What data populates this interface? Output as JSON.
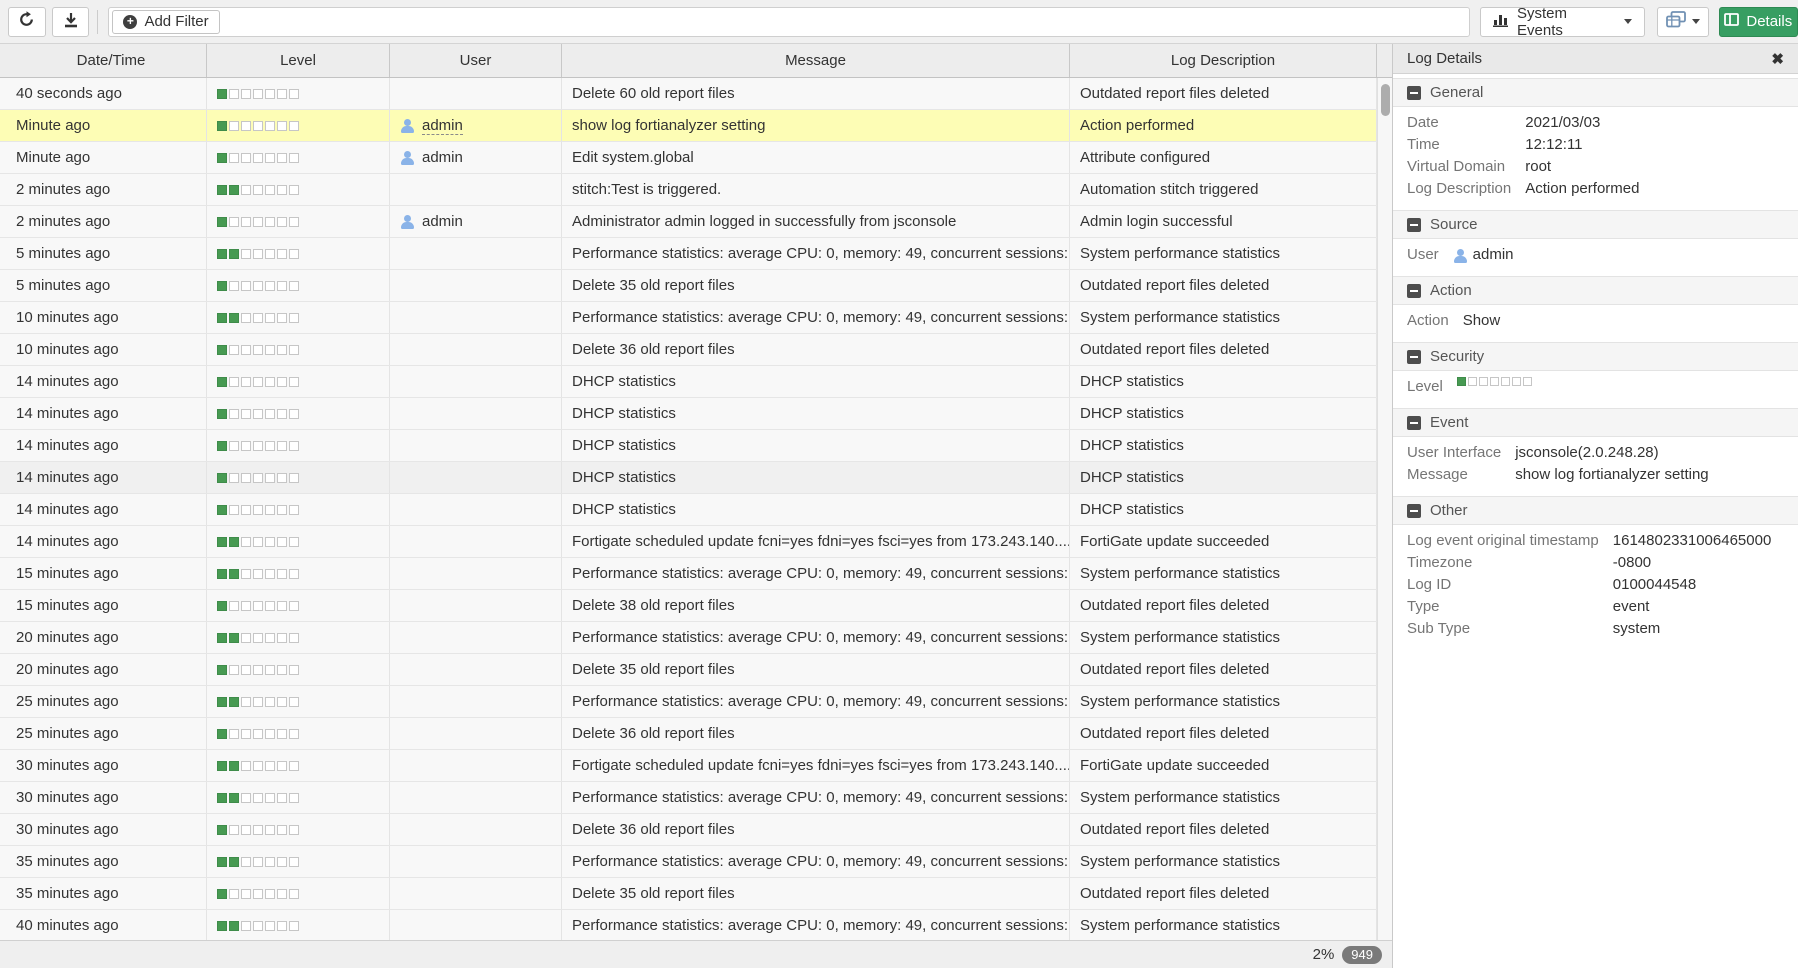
{
  "toolbar": {
    "add_filter_label": "Add Filter",
    "view_selector_label": "System Events",
    "details_button_label": "Details"
  },
  "table": {
    "columns": [
      "Date/Time",
      "Level",
      "User",
      "Message",
      "Log Description"
    ],
    "level_max": 7,
    "rows": [
      {
        "time": "40 seconds ago",
        "level": 1,
        "user": "",
        "message": "Delete 60 old report files",
        "description": "Outdated report files deleted",
        "state": ""
      },
      {
        "time": "Minute ago",
        "level": 1,
        "user": "admin",
        "message": "show log fortianalyzer setting",
        "description": "Action performed",
        "state": "selected"
      },
      {
        "time": "Minute ago",
        "level": 1,
        "user": "admin",
        "message": "Edit system.global",
        "description": "Attribute configured",
        "state": ""
      },
      {
        "time": "2 minutes ago",
        "level": 2,
        "user": "",
        "message": "stitch:Test is triggered.",
        "description": "Automation stitch triggered",
        "state": ""
      },
      {
        "time": "2 minutes ago",
        "level": 1,
        "user": "admin",
        "message": "Administrator admin logged in successfully from jsconsole",
        "description": "Admin login successful",
        "state": ""
      },
      {
        "time": "5 minutes ago",
        "level": 2,
        "user": "",
        "message": "Performance statistics: average CPU: 0, memory: 49, concurrent sessions: ...",
        "description": "System performance statistics",
        "state": ""
      },
      {
        "time": "5 minutes ago",
        "level": 1,
        "user": "",
        "message": "Delete 35 old report files",
        "description": "Outdated report files deleted",
        "state": ""
      },
      {
        "time": "10 minutes ago",
        "level": 2,
        "user": "",
        "message": "Performance statistics: average CPU: 0, memory: 49, concurrent sessions: ...",
        "description": "System performance statistics",
        "state": ""
      },
      {
        "time": "10 minutes ago",
        "level": 1,
        "user": "",
        "message": "Delete 36 old report files",
        "description": "Outdated report files deleted",
        "state": ""
      },
      {
        "time": "14 minutes ago",
        "level": 1,
        "user": "",
        "message": "DHCP statistics",
        "description": "DHCP statistics",
        "state": ""
      },
      {
        "time": "14 minutes ago",
        "level": 1,
        "user": "",
        "message": "DHCP statistics",
        "description": "DHCP statistics",
        "state": ""
      },
      {
        "time": "14 minutes ago",
        "level": 1,
        "user": "",
        "message": "DHCP statistics",
        "description": "DHCP statistics",
        "state": ""
      },
      {
        "time": "14 minutes ago",
        "level": 1,
        "user": "",
        "message": "DHCP statistics",
        "description": "DHCP statistics",
        "state": "hover"
      },
      {
        "time": "14 minutes ago",
        "level": 1,
        "user": "",
        "message": "DHCP statistics",
        "description": "DHCP statistics",
        "state": ""
      },
      {
        "time": "14 minutes ago",
        "level": 2,
        "user": "",
        "message": "Fortigate scheduled update fcni=yes fdni=yes fsci=yes from 173.243.140....",
        "description": "FortiGate update succeeded",
        "state": ""
      },
      {
        "time": "15 minutes ago",
        "level": 2,
        "user": "",
        "message": "Performance statistics: average CPU: 0, memory: 49, concurrent sessions: ...",
        "description": "System performance statistics",
        "state": ""
      },
      {
        "time": "15 minutes ago",
        "level": 1,
        "user": "",
        "message": "Delete 38 old report files",
        "description": "Outdated report files deleted",
        "state": ""
      },
      {
        "time": "20 minutes ago",
        "level": 2,
        "user": "",
        "message": "Performance statistics: average CPU: 0, memory: 49, concurrent sessions: ...",
        "description": "System performance statistics",
        "state": ""
      },
      {
        "time": "20 minutes ago",
        "level": 1,
        "user": "",
        "message": "Delete 35 old report files",
        "description": "Outdated report files deleted",
        "state": ""
      },
      {
        "time": "25 minutes ago",
        "level": 2,
        "user": "",
        "message": "Performance statistics: average CPU: 0, memory: 49, concurrent sessions: ...",
        "description": "System performance statistics",
        "state": ""
      },
      {
        "time": "25 minutes ago",
        "level": 1,
        "user": "",
        "message": "Delete 36 old report files",
        "description": "Outdated report files deleted",
        "state": ""
      },
      {
        "time": "30 minutes ago",
        "level": 2,
        "user": "",
        "message": "Fortigate scheduled update fcni=yes fdni=yes fsci=yes from 173.243.140....",
        "description": "FortiGate update succeeded",
        "state": ""
      },
      {
        "time": "30 minutes ago",
        "level": 2,
        "user": "",
        "message": "Performance statistics: average CPU: 0, memory: 49, concurrent sessions: ...",
        "description": "System performance statistics",
        "state": ""
      },
      {
        "time": "30 minutes ago",
        "level": 1,
        "user": "",
        "message": "Delete 36 old report files",
        "description": "Outdated report files deleted",
        "state": ""
      },
      {
        "time": "35 minutes ago",
        "level": 2,
        "user": "",
        "message": "Performance statistics: average CPU: 0, memory: 49, concurrent sessions: ...",
        "description": "System performance statistics",
        "state": ""
      },
      {
        "time": "35 minutes ago",
        "level": 1,
        "user": "",
        "message": "Delete 35 old report files",
        "description": "Outdated report files deleted",
        "state": ""
      },
      {
        "time": "40 minutes ago",
        "level": 2,
        "user": "",
        "message": "Performance statistics: average CPU: 0, memory: 49, concurrent sessions: ...",
        "description": "System performance statistics",
        "state": ""
      }
    ]
  },
  "status_bar": {
    "progress": "2%",
    "count": "949"
  },
  "details_panel": {
    "title": "Log Details",
    "sections": [
      {
        "title": "General",
        "rows": [
          {
            "label": "Date",
            "value": "2021/03/03"
          },
          {
            "label": "Time",
            "value": "12:12:11"
          },
          {
            "label": "Virtual Domain",
            "value": "root"
          },
          {
            "label": "Log Description",
            "value": "Action performed"
          }
        ]
      },
      {
        "title": "Source",
        "rows": [
          {
            "label": "User",
            "value": "admin",
            "icon": "user"
          }
        ]
      },
      {
        "title": "Action",
        "rows": [
          {
            "label": "Action",
            "value": "Show"
          }
        ]
      },
      {
        "title": "Security",
        "rows": [
          {
            "label": "Level",
            "value": "",
            "level_bar": 1
          }
        ]
      },
      {
        "title": "Event",
        "rows": [
          {
            "label": "User Interface",
            "value": "jsconsole(2.0.248.28)"
          },
          {
            "label": "Message",
            "value": "show log fortianalyzer setting"
          }
        ]
      },
      {
        "title": "Other",
        "rows": [
          {
            "label": "Log event original timestamp",
            "value": "1614802331006465000"
          },
          {
            "label": "Timezone",
            "value": "-0800"
          },
          {
            "label": "Log ID",
            "value": "0100044548"
          },
          {
            "label": "Type",
            "value": "event"
          },
          {
            "label": "Sub Type",
            "value": "system"
          }
        ]
      }
    ]
  },
  "colors": {
    "accent_green": "#379e62",
    "level_green": "#479a52",
    "selected_row_yellow": "#fdfdb5",
    "user_icon_blue": "#8ab3e8"
  }
}
